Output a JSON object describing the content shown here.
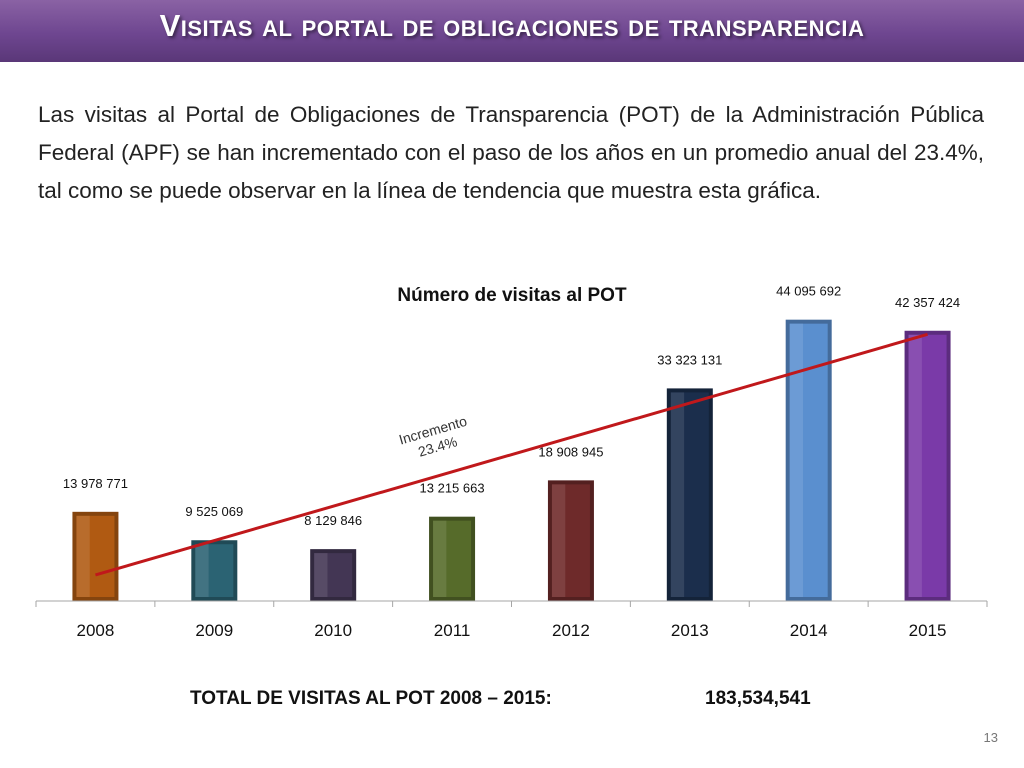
{
  "header": {
    "title": "Visitas al portal de obligaciones de transparencia"
  },
  "intro": {
    "text": "Las visitas al Portal de Obligaciones de Transparencia (POT) de la Administración Pública Federal (APF) se han incrementado con el paso de los años en un promedio anual del 23.4%, tal como se puede observar en la línea de tendencia que muestra esta gráfica."
  },
  "chart_data": {
    "type": "bar",
    "title": "Número de visitas al POT",
    "xlabel": "",
    "ylabel": "",
    "categories": [
      "2008",
      "2009",
      "2010",
      "2011",
      "2012",
      "2013",
      "2014",
      "2015"
    ],
    "values": [
      13978771,
      9525069,
      8129846,
      13215663,
      18908945,
      33323131,
      44095692,
      42357424
    ],
    "data_labels": [
      "13 978 771",
      "9 525 069",
      "8 129 846",
      "13 215 663",
      "18 908 945",
      "33 323 131",
      "44 095 692",
      "42 357 424"
    ],
    "colors": [
      "#b05a12",
      "#2b6373",
      "#433654",
      "#566b2a",
      "#6e2a2a",
      "#1b2e4c",
      "#5a8fcf",
      "#7a3aa8"
    ],
    "ylim": [
      0,
      50000000
    ],
    "grid": false,
    "legend": "none",
    "trendline": {
      "label_line1": "Incremento",
      "label_line2": "23.4%",
      "color": "#c0181b"
    }
  },
  "footer": {
    "total_label": "TOTAL DE VISITAS AL POT 2008 – 2015:",
    "total_value": "183,534,541",
    "page_number": "13"
  }
}
